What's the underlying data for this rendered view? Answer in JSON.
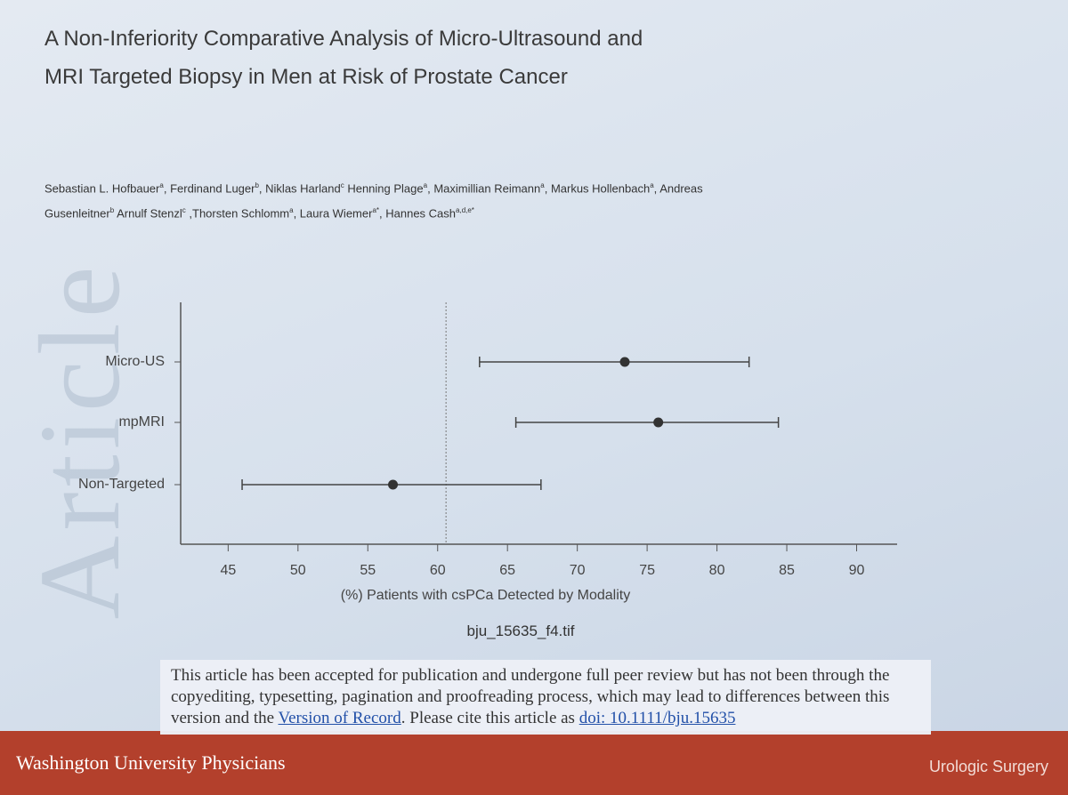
{
  "slide": {
    "watermark": "Article",
    "title_lines": [
      "A Non-Inferiority Comparative Analysis of Micro-Ultrasound and",
      "MRI Targeted Biopsy in Men at Risk of Prostate Cancer"
    ],
    "authors": [
      {
        "name": "Sebastian L. Hofbauer",
        "sup": "a",
        "after": ", "
      },
      {
        "name": "Ferdinand Luger",
        "sup": "b",
        "after": ", "
      },
      {
        "name": "Niklas Harland",
        "sup": "c",
        "after": " "
      },
      {
        "name": "Henning Plage",
        "sup": "a",
        "after": ", "
      },
      {
        "name": "Maximillian Reimann",
        "sup": "a",
        "after": ", "
      },
      {
        "name": "Markus Hollenbach",
        "sup": "a",
        "after": ", "
      },
      {
        "name": "Andreas Gusenleitner",
        "sup": "b",
        "after": " "
      },
      {
        "name": "Arnulf Stenzl",
        "sup": "c",
        "after": " ,"
      },
      {
        "name": "Thorsten Schlomm",
        "sup": "a",
        "after": ", "
      },
      {
        "name": "Laura Wiemer",
        "sup": "a*",
        "after": ", "
      },
      {
        "name": "Hannes Cash",
        "sup": "a,d,e*"
      }
    ],
    "file_name": "bju_15635_f4.tif",
    "notice": {
      "text_before": "This article has been accepted for publication and undergone full peer review but has not been through the copyediting, typesetting, pagination and proofreading process, which may lead to differences between this version and the ",
      "link1": "Version of Record",
      "text_middle": ". Please cite this article as ",
      "link2": "doi: 10.1111/bju.15635"
    },
    "footer_left": "Washington University Physicians",
    "footer_right": "Urologic Surgery"
  },
  "chart_data": {
    "type": "forest",
    "categories": [
      "Micro-US",
      "mpMRI",
      "Non-Targeted"
    ],
    "values": [
      73.4,
      75.8,
      56.8
    ],
    "lower": [
      63.0,
      65.6,
      46.0
    ],
    "upper": [
      82.3,
      84.4,
      67.4
    ],
    "reference_line": 60.6,
    "color": "#444444",
    "x_label": "(%) Patients with csPCa Detected by Modality",
    "xlim": [
      41.6,
      92.9
    ],
    "xticks": [
      45,
      50,
      55,
      60,
      65,
      70,
      75,
      80,
      85,
      90
    ]
  }
}
